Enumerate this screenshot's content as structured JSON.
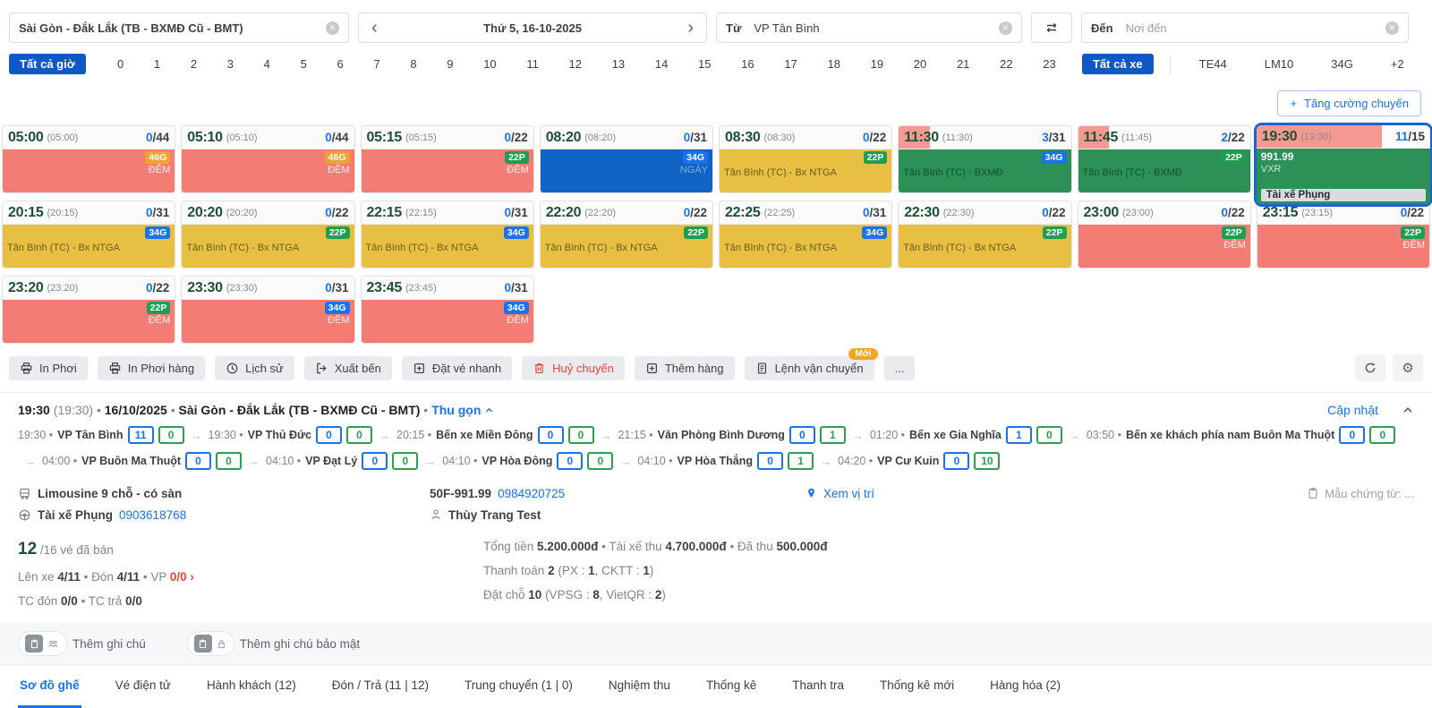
{
  "header": {
    "route": "Sài Gòn - Đắk Lắk (TB - BXMĐ Cũ - BMT)",
    "date": "Thứ 5, 16-10-2025",
    "from_label": "Từ",
    "from_value": "VP Tân Bình",
    "to_label": "Đến",
    "to_placeholder": "Nơi đến"
  },
  "hour_filter": {
    "all_hours": "Tất cả giờ",
    "hours": [
      "0",
      "1",
      "2",
      "3",
      "4",
      "5",
      "6",
      "7",
      "8",
      "9",
      "10",
      "11",
      "12",
      "13",
      "14",
      "15",
      "16",
      "17",
      "18",
      "19",
      "20",
      "21",
      "22",
      "23"
    ],
    "all_vehicles": "Tất cả xe",
    "vehicles": [
      "TE44",
      "LM10",
      "34G",
      "+2"
    ]
  },
  "add_trip_label": "Tăng cường chuyến",
  "colors": {
    "accent": "#1a73e8",
    "selected_border": "#1565d8",
    "header_tab": "#f59a93",
    "body": {
      "red": "#f37d75",
      "yellow": "#e7c043",
      "green": "#2d9056",
      "blue": "#1263c6"
    },
    "badge": {
      "46G": "#f0a32e",
      "34G": "#1a73e8",
      "22P": "#1e9e50"
    }
  },
  "trips": [
    {
      "time": "05:00",
      "sub": "(05:00)",
      "sold": "0",
      "cap": "/44",
      "badge": "46G",
      "body": "red",
      "label": "ĐÊM",
      "lstyle": "deem",
      "tint": 0
    },
    {
      "time": "05:10",
      "sub": "(05:10)",
      "sold": "0",
      "cap": "/44",
      "badge": "46G",
      "body": "red",
      "label": "ĐÊM",
      "lstyle": "deem",
      "tint": 0
    },
    {
      "time": "05:15",
      "sub": "(05:15)",
      "sold": "0",
      "cap": "/22",
      "badge": "22P",
      "body": "red",
      "label": "ĐÊM",
      "lstyle": "deem",
      "tint": 0
    },
    {
      "time": "08:20",
      "sub": "(08:20)",
      "sold": "0",
      "cap": "/31",
      "badge": "34G",
      "body": "blue",
      "label": "NGÀY",
      "lstyle": "faint",
      "tint": 0
    },
    {
      "time": "08:30",
      "sub": "(08:30)",
      "sold": "0",
      "cap": "/22",
      "badge": "22P",
      "body": "yellow",
      "label": "Tân Bình (TC) - Bx NTGA",
      "lstyle": "route",
      "tint": 0
    },
    {
      "time": "11:30",
      "sub": "(11:30)",
      "sold": "3",
      "cap": "/31",
      "badge": "34G",
      "body": "green",
      "label": "Tân Bình (TC) - BXMĐ",
      "lstyle": "route",
      "tint": 18
    },
    {
      "time": "11:45",
      "sub": "(11:45)",
      "sold": "2",
      "cap": "/22",
      "badge": "22P",
      "body": "green",
      "label": "Tân Bình (TC) - BXMĐ",
      "lstyle": "route",
      "tint": 18
    },
    {
      "time": "19:30",
      "sub": "(19:30)",
      "sold": "11",
      "cap": "/15",
      "badge": "",
      "body": "green",
      "label": "",
      "lstyle": "",
      "tint": 72,
      "selected": true,
      "lines": [
        "991.99",
        "VXR"
      ],
      "driver": "Tài xế Phụng"
    },
    {
      "time": "20:15",
      "sub": "(20:15)",
      "sold": "0",
      "cap": "/31",
      "badge": "34G",
      "body": "yellow",
      "label": "Tân Bình (TC) - Bx NTGA",
      "lstyle": "route",
      "tint": 0
    },
    {
      "time": "20:20",
      "sub": "(20:20)",
      "sold": "0",
      "cap": "/22",
      "badge": "22P",
      "body": "yellow",
      "label": "Tân Bình (TC) - Bx NTGA",
      "lstyle": "route",
      "tint": 0
    },
    {
      "time": "22:15",
      "sub": "(22:15)",
      "sold": "0",
      "cap": "/31",
      "badge": "34G",
      "body": "yellow",
      "label": "Tân Bình (TC) - Bx NTGA",
      "lstyle": "route",
      "tint": 0
    },
    {
      "time": "22:20",
      "sub": "(22:20)",
      "sold": "0",
      "cap": "/22",
      "badge": "22P",
      "body": "yellow",
      "label": "Tân Bình (TC) - Bx NTGA",
      "lstyle": "route",
      "tint": 0
    },
    {
      "time": "22:25",
      "sub": "(22:25)",
      "sold": "0",
      "cap": "/31",
      "badge": "34G",
      "body": "yellow",
      "label": "Tân Bình (TC) - Bx NTGA",
      "lstyle": "route",
      "tint": 0
    },
    {
      "time": "22:30",
      "sub": "(22:30)",
      "sold": "0",
      "cap": "/22",
      "badge": "22P",
      "body": "yellow",
      "label": "Tân Bình (TC) - Bx NTGA",
      "lstyle": "route",
      "tint": 0
    },
    {
      "time": "23:00",
      "sub": "(23:00)",
      "sold": "0",
      "cap": "/22",
      "badge": "22P",
      "body": "red",
      "label": "ĐÊM",
      "lstyle": "deem",
      "tint": 0
    },
    {
      "time": "23:15",
      "sub": "(23:15)",
      "sold": "0",
      "cap": "/22",
      "badge": "22P",
      "body": "red",
      "label": "ĐÊM",
      "lstyle": "deem",
      "tint": 0
    },
    {
      "time": "23:20",
      "sub": "(23:20)",
      "sold": "0",
      "cap": "/22",
      "badge": "22P",
      "body": "red",
      "label": "ĐÊM",
      "lstyle": "deem",
      "tint": 0
    },
    {
      "time": "23:30",
      "sub": "(23:30)",
      "sold": "0",
      "cap": "/31",
      "badge": "34G",
      "body": "red",
      "label": "ĐÊM",
      "lstyle": "deem",
      "tint": 0
    },
    {
      "time": "23:45",
      "sub": "(23:45)",
      "sold": "0",
      "cap": "/31",
      "badge": "34G",
      "body": "red",
      "label": "ĐÊM",
      "lstyle": "deem",
      "tint": 0
    }
  ],
  "toolbar": {
    "buttons": [
      {
        "label": "In Phơi",
        "icon": "printer"
      },
      {
        "label": "In Phơi hàng",
        "icon": "printer"
      },
      {
        "label": "Lịch sử",
        "icon": "history"
      },
      {
        "label": "Xuất bến",
        "icon": "depart"
      },
      {
        "label": "Đặt vé nhanh",
        "icon": "plus-square"
      },
      {
        "label": "Huỷ chuyến",
        "icon": "trash",
        "danger": true
      },
      {
        "label": "Thêm hàng",
        "icon": "plus-square"
      },
      {
        "label": "Lệnh vận chuyển",
        "icon": "waybill",
        "badge": "Mới"
      },
      {
        "label": "...",
        "icon": ""
      }
    ]
  },
  "detail": {
    "title_segments": [
      {
        "t": "19:30 ",
        "c": "hb"
      },
      {
        "t": "(19:30)",
        "c": "g"
      },
      {
        "t": "  •  ",
        "c": "g"
      },
      {
        "t": "16/10/2025",
        "c": "hb"
      },
      {
        "t": "  •  ",
        "c": "g"
      },
      {
        "t": "Sài Gòn - Đắk Lắk (TB - BXMĐ Cũ - BMT)",
        "c": "hb"
      },
      {
        "t": "  •",
        "c": "g"
      }
    ],
    "collapse_label": "Thu gọn",
    "update_label": "Cập nhật",
    "stops": [
      {
        "time": "19:30",
        "name": "VP Tân Bình",
        "a": "11",
        "b": "0"
      },
      {
        "time": "19:30",
        "name": "VP Thủ Đức",
        "a": "0",
        "b": "0"
      },
      {
        "time": "20:15",
        "name": "Bến xe Miền Đông",
        "a": "0",
        "b": "0"
      },
      {
        "time": "21:15",
        "name": "Văn Phòng Bình Dương",
        "a": "0",
        "b": "1"
      },
      {
        "time": "01:20",
        "name": "Bến xe Gia Nghĩa",
        "a": "1",
        "b": "0"
      },
      {
        "time": "03:50",
        "name": "Bến xe khách phía nam Buôn Ma Thuột",
        "a": "0",
        "b": "0"
      },
      {
        "time": "04:00",
        "name": "VP Buôn Ma Thuột",
        "a": "0",
        "b": "0"
      },
      {
        "time": "04:10",
        "name": "VP Đạt Lý",
        "a": "0",
        "b": "0"
      },
      {
        "time": "04:10",
        "name": "VP Hòa Đông",
        "a": "0",
        "b": "0"
      },
      {
        "time": "04:10",
        "name": "VP Hòa Thắng",
        "a": "0",
        "b": "1"
      },
      {
        "time": "04:20",
        "name": "VP Cư Kuin",
        "a": "0",
        "b": "10"
      }
    ],
    "vehicle": {
      "type": "Limousine 9 chỗ - có sàn",
      "plate": "50F-991.99",
      "plate_phone": "0984920725",
      "location_label": "Xem vị trí",
      "driver_label": "Tài xế Phụng",
      "driver_phone": "0903618768",
      "staff": "Thùy Trang Test",
      "doc_template": "Mẫu chứng từ: ..."
    },
    "stats_left": [
      [
        {
          "t": "12",
          "c": "big"
        },
        {
          "t": " /16 vé đã bán",
          "c": "g"
        }
      ],
      [
        {
          "t": "Lên xe ",
          "c": "g"
        },
        {
          "t": "4/11",
          "c": "b"
        },
        {
          "t": "  •  ",
          "c": "g"
        },
        {
          "t": "Đón ",
          "c": "g"
        },
        {
          "t": "4/11",
          "c": "b"
        },
        {
          "t": "  •  ",
          "c": "g"
        },
        {
          "t": "VP ",
          "c": "g"
        },
        {
          "t": "0/0 ›",
          "c": "r"
        }
      ],
      [
        {
          "t": "TC đón ",
          "c": "g"
        },
        {
          "t": "0/0",
          "c": "b"
        },
        {
          "t": "  •  ",
          "c": "g"
        },
        {
          "t": "TC trả ",
          "c": "g"
        },
        {
          "t": "0/0",
          "c": "b"
        }
      ]
    ],
    "stats_right": [
      [
        {
          "t": "Tổng tiền ",
          "c": "g"
        },
        {
          "t": "5.200.000đ",
          "c": "b"
        },
        {
          "t": "  •  ",
          "c": "g"
        },
        {
          "t": "Tài xế thu ",
          "c": "g"
        },
        {
          "t": "4.700.000đ",
          "c": "b"
        },
        {
          "t": "  •  ",
          "c": "g"
        },
        {
          "t": "Đã thu ",
          "c": "g"
        },
        {
          "t": "500.000đ",
          "c": "b"
        }
      ],
      [
        {
          "t": "Thanh toán ",
          "c": "g"
        },
        {
          "t": "2",
          "c": "b"
        },
        {
          "t": " (PX : ",
          "c": "g"
        },
        {
          "t": "1",
          "c": "b"
        },
        {
          "t": ", CKTT : ",
          "c": "g"
        },
        {
          "t": "1",
          "c": "b"
        },
        {
          "t": ")",
          "c": "g"
        }
      ],
      [
        {
          "t": "Đặt chỗ ",
          "c": "g"
        },
        {
          "t": "10",
          "c": "b"
        },
        {
          "t": " (VPSG : ",
          "c": "g"
        },
        {
          "t": "8",
          "c": "b"
        },
        {
          "t": ", VietQR : ",
          "c": "g"
        },
        {
          "t": "2",
          "c": "b"
        },
        {
          "t": ")",
          "c": "g"
        }
      ]
    ],
    "notes": {
      "note": "Thêm ghi chú",
      "secure_note": "Thêm ghi chú bảo mật"
    }
  },
  "tabs": [
    {
      "label": "Sơ đồ ghế",
      "active": true
    },
    {
      "label": "Vé điện tử"
    },
    {
      "label": "Hành khách (12)"
    },
    {
      "label": "Đón / Trả (11 | 12)"
    },
    {
      "label": "Trung chuyển (1 | 0)"
    },
    {
      "label": "Nghiệm thu"
    },
    {
      "label": "Thống kê"
    },
    {
      "label": "Thanh tra"
    },
    {
      "label": "Thống kê mới"
    },
    {
      "label": "Hàng hóa (2)"
    }
  ]
}
